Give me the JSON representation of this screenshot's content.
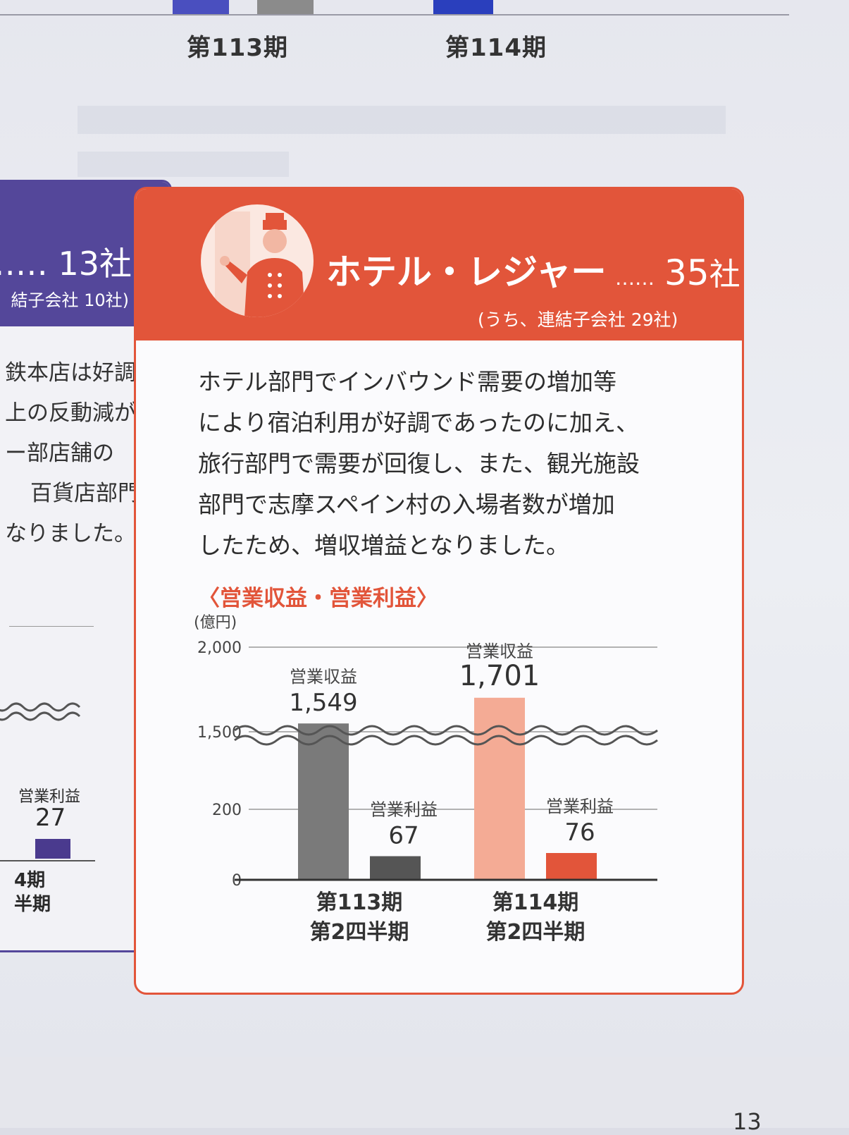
{
  "top_chart": {
    "labels": [
      "第113期",
      "第114期"
    ],
    "colors": {
      "bar_a": "#4a4fbf",
      "bar_b": "#8b8b8b",
      "bar_c": "#2a3fbd"
    }
  },
  "left_section": {
    "count": "…… 13社",
    "sub": "結子会社 10社)",
    "lines": [
      "鉄本店は好調",
      "上の反動減が",
      "ー部店舗の",
      "百貨店部門",
      "なりました。"
    ],
    "op_label": "営業利益",
    "op_value": "27",
    "period": "4期",
    "quarter": "半期",
    "color": "#54479a"
  },
  "hotel_section": {
    "icon": "bellhop-icon",
    "title": "ホテル・レジャー",
    "count_dots": "……",
    "count_num": "35",
    "count_unit": "社",
    "sub": "(うち、連結子会社 29社)",
    "body": [
      "ホテル部門でインバウンド需要の増加等",
      "により宿泊利用が好調であったのに加え、",
      "旅行部門で需要が回復し、また、観光施設",
      "部門で志摩スペイン村の入場者数が増加",
      "したため、増収増益となりました。"
    ],
    "accent": "#e2553a"
  },
  "chart_data": {
    "type": "bar",
    "title": "〈営業収益・営業利益〉",
    "ylabel": "(億円)",
    "y_ticks": [
      "2,000",
      "1,500",
      "200",
      "0"
    ],
    "axis_break": "between 200 and 1,500",
    "categories": [
      {
        "line1": "第113期",
        "line2": "第2四半期"
      },
      {
        "line1": "第114期",
        "line2": "第2四半期"
      }
    ],
    "series": [
      {
        "name": "営業収益",
        "values": [
          1549,
          1701
        ],
        "labels": [
          "1,549",
          "1,701"
        ]
      },
      {
        "name": "営業利益",
        "values": [
          67,
          76
        ],
        "labels": [
          "67",
          "76"
        ]
      }
    ],
    "colors": {
      "prev_revenue": "#7a7a7a",
      "prev_profit": "#555555",
      "cur_revenue": "#f4ab95",
      "cur_profit": "#e2553a"
    }
  },
  "page_number": "13"
}
